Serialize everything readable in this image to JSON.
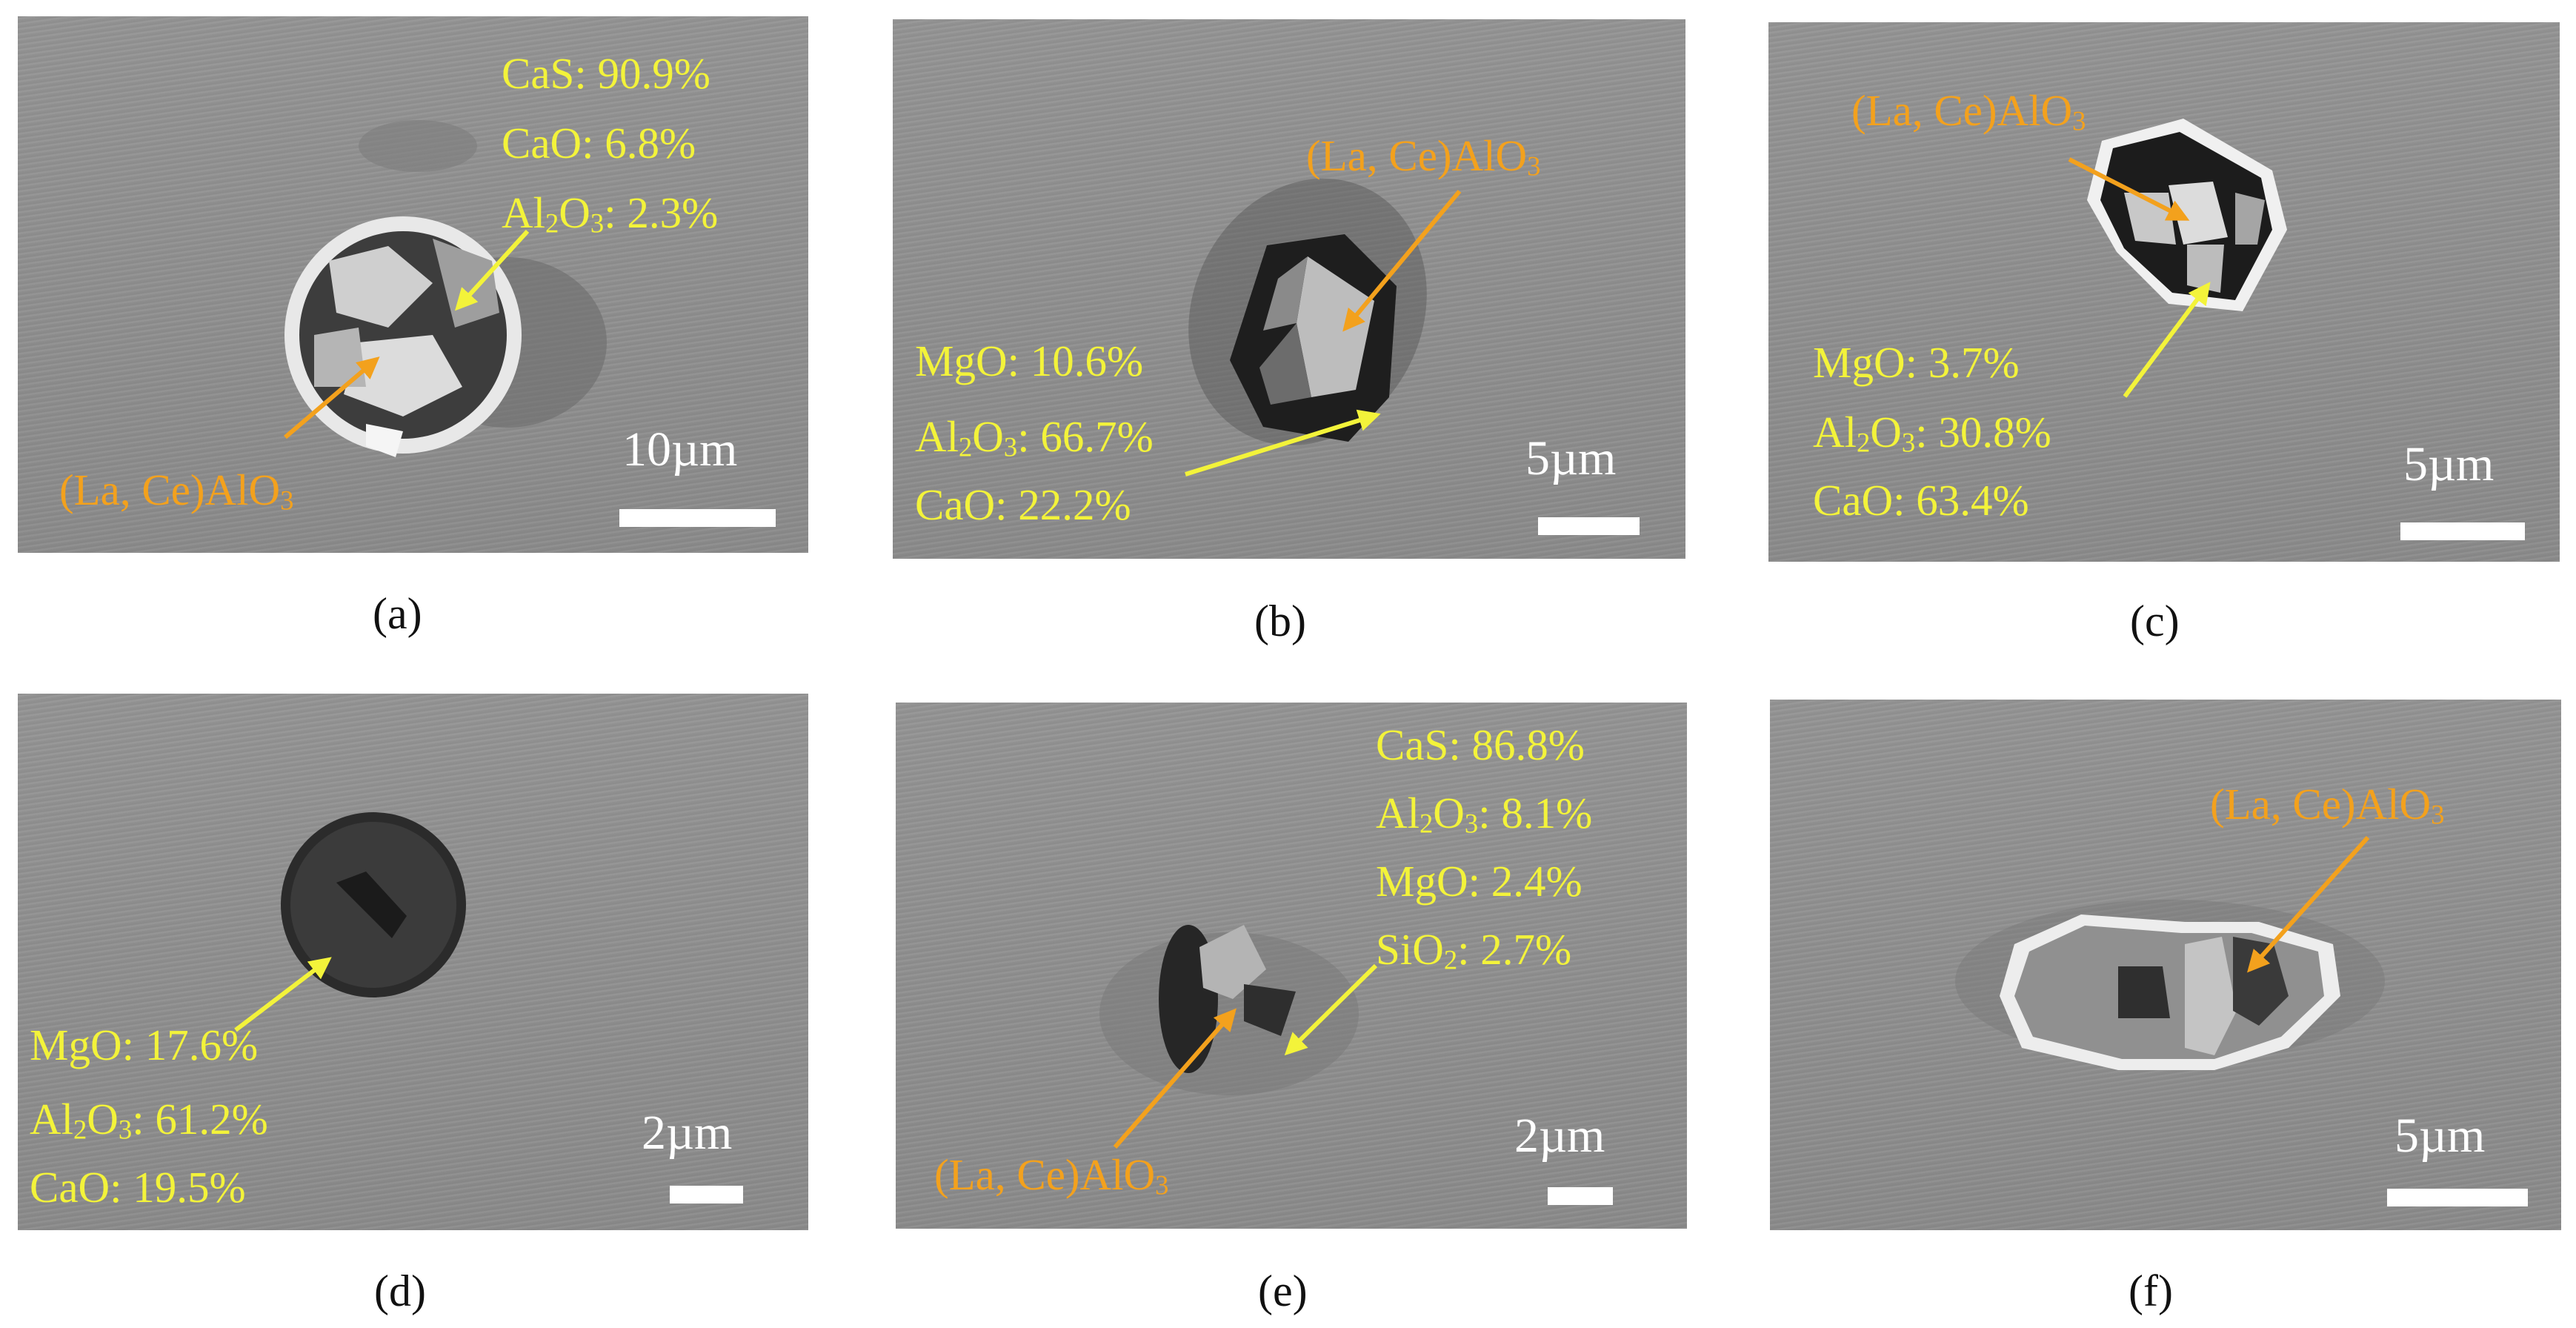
{
  "panels": {
    "a": {
      "caption": "(a)",
      "scale": "10µm",
      "composition": [
        {
          "name": "CaS",
          "sub": "",
          "tail": "",
          "value": ": 90.9%"
        },
        {
          "name": "CaO",
          "sub": "",
          "tail": "",
          "value": ": 6.8%"
        },
        {
          "name": "Al",
          "sub": "2",
          "tail": "O",
          "sub2": "3",
          "value": ": 2.3%"
        }
      ],
      "phase": {
        "prefix": "(La, Ce)AlO",
        "sub": "3"
      }
    },
    "b": {
      "caption": "(b)",
      "scale": "5µm",
      "composition": [
        {
          "name": "MgO",
          "value": ": 10.6%"
        },
        {
          "name": "Al",
          "sub": "2",
          "tail": "O",
          "sub2": "3",
          "value": ": 66.7%"
        },
        {
          "name": "CaO",
          "value": ": 22.2%"
        }
      ],
      "phase": {
        "prefix": "(La, Ce)AlO",
        "sub": "3"
      }
    },
    "c": {
      "caption": "(c)",
      "scale": "5µm",
      "composition": [
        {
          "name": "MgO",
          "value": ": 3.7%"
        },
        {
          "name": "Al",
          "sub": "2",
          "tail": "O",
          "sub2": "3",
          "value": ": 30.8%"
        },
        {
          "name": "CaO",
          "value": ": 63.4%"
        }
      ],
      "phase": {
        "prefix": "(La, Ce)AlO",
        "sub": "3"
      }
    },
    "d": {
      "caption": "(d)",
      "scale": "2µm",
      "composition": [
        {
          "name": "MgO",
          "value": ": 17.6%"
        },
        {
          "name": "Al",
          "sub": "2",
          "tail": "O",
          "sub2": "3",
          "value": ": 61.2%"
        },
        {
          "name": "CaO",
          "value": ": 19.5%"
        }
      ]
    },
    "e": {
      "caption": "(e)",
      "scale": "2µm",
      "composition": [
        {
          "name": "CaS",
          "value": ": 86.8%"
        },
        {
          "name": "Al",
          "sub": "2",
          "tail": "O",
          "sub2": "3",
          "value": ": 8.1%"
        },
        {
          "name": "MgO",
          "value": ": 2.4%"
        },
        {
          "name": "SiO",
          "sub": "2",
          "value": ": 2.7%"
        }
      ],
      "phase": {
        "prefix": "(La, Ce)AlO",
        "sub": "3"
      }
    },
    "f": {
      "caption": "(f)",
      "scale": "5µm",
      "phase": {
        "prefix": "(La, Ce)AlO",
        "sub": "3"
      }
    }
  },
  "colors": {
    "composition": "#f3f33a",
    "phase": "#f3a11d",
    "scale": "#ffffff"
  }
}
